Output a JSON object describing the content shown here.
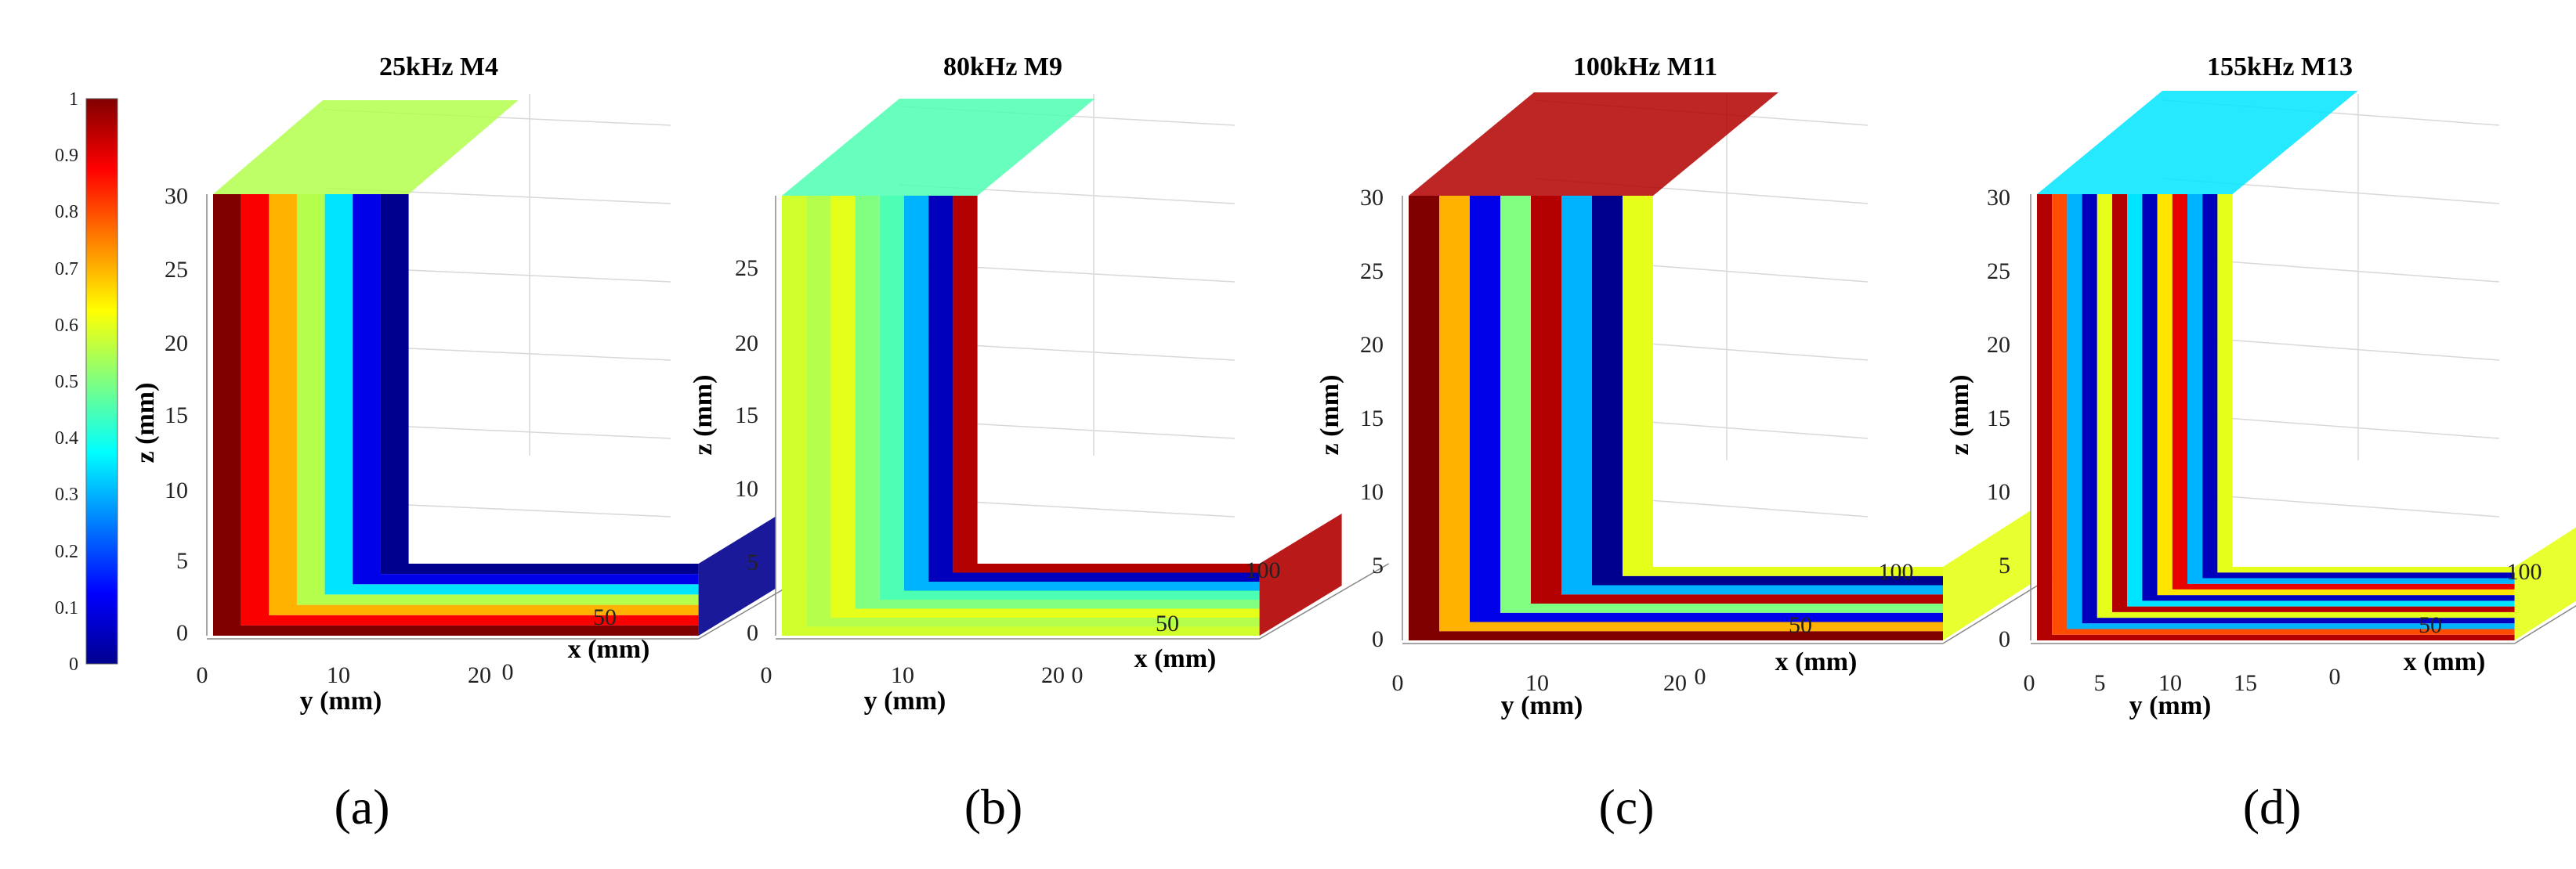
{
  "colorbar": {
    "ticks": [
      "0",
      "0.1",
      "0.2",
      "0.3",
      "0.4",
      "0.5",
      "0.6",
      "0.7",
      "0.8",
      "0.9",
      "1"
    ],
    "range": [
      0,
      1
    ],
    "colormap": "jet"
  },
  "chart_data": [
    {
      "type": "heatmap",
      "title": "25kHz M4",
      "panel_label": "(a)",
      "xlabel": "x (mm)",
      "ylabel": "y (mm)",
      "zlabel": "z (mm)",
      "y_ticks": [
        "0",
        "10",
        "20"
      ],
      "x_ticks": [
        "0",
        "50"
      ],
      "z_ticks": [
        "0",
        "5",
        "10",
        "15",
        "20",
        "25",
        "30"
      ],
      "mode_description": "strong amplitude at outer corner fading toward inner region",
      "stripes": [
        1.0,
        0.88,
        0.7,
        0.55,
        0.35,
        0.1,
        0.0
      ]
    },
    {
      "type": "heatmap",
      "title": "80kHz M9",
      "panel_label": "(b)",
      "xlabel": "x (mm)",
      "ylabel": "y (mm)",
      "zlabel": "z (mm)",
      "y_ticks": [
        "0",
        "10",
        "20"
      ],
      "x_ticks": [
        "0",
        "50",
        "100"
      ],
      "z_ticks": [
        "0",
        "5",
        "10",
        "15",
        "20",
        "25"
      ],
      "mode_description": "mostly mid amplitude with high values at flange bottom",
      "stripes": [
        0.58,
        0.55,
        0.6,
        0.5,
        0.45,
        0.3,
        0.05,
        0.95
      ]
    },
    {
      "type": "heatmap",
      "title": "100kHz M11",
      "panel_label": "(c)",
      "xlabel": "x (mm)",
      "ylabel": "y (mm)",
      "zlabel": "z (mm)",
      "y_ticks": [
        "0",
        "10",
        "20"
      ],
      "x_ticks": [
        "0",
        "50",
        "100"
      ],
      "z_ticks": [
        "0",
        "5",
        "10",
        "15",
        "20",
        "25",
        "30"
      ],
      "mode_description": "alternating bands in upper web, mid amplitude lower",
      "stripes": [
        1.0,
        0.7,
        0.1,
        0.5,
        0.95,
        0.3,
        0.0,
        0.6
      ]
    },
    {
      "type": "heatmap",
      "title": "155kHz M13",
      "panel_label": "(d)",
      "xlabel": "x (mm)",
      "ylabel": "y (mm)",
      "zlabel": "z (mm)",
      "y_ticks": [
        "0",
        "5",
        "10",
        "15"
      ],
      "x_ticks": [
        "0",
        "50",
        "100"
      ],
      "z_ticks": [
        "0",
        "5",
        "10",
        "15",
        "20",
        "25",
        "30"
      ],
      "mode_description": "many alternating bands across the L-section",
      "stripes": [
        0.95,
        0.8,
        0.3,
        0.05,
        0.6,
        0.95,
        0.35,
        0.05,
        0.65,
        0.9,
        0.3,
        0.05,
        0.6
      ]
    }
  ]
}
